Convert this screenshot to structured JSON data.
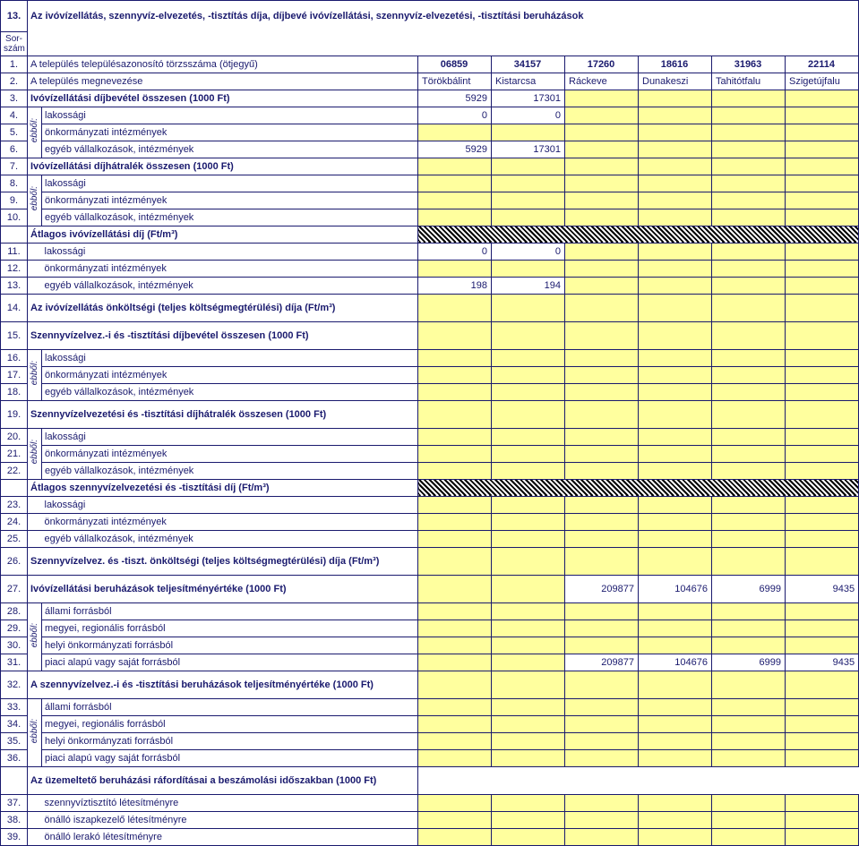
{
  "header": {
    "box13": "13.",
    "sorszam": "Sor-\nszám",
    "title": "Az ivóvízellátás, szennyvíz-elvezetés, -tisztítás díja, díjbevé\nivóvízellátási, szennyvíz-elvezetési, -tisztítási beruházások"
  },
  "ebbol_label": "ebből:",
  "cols": {
    "codes": [
      "06859",
      "34157",
      "17260",
      "18616",
      "31963",
      "22114"
    ],
    "names": [
      "Törökbálint",
      "Kistarcsa",
      "Ráckeve",
      "Dunakeszi",
      "Tahitótfalu",
      "Szigetújfalu"
    ]
  },
  "rows": [
    {
      "n": "1.",
      "label": "A település településazonosító törzsszáma (ötjegyű)",
      "bold": false,
      "data": [
        "06859",
        "34157",
        "17260",
        "18616",
        "31963",
        "22114"
      ],
      "align": "center",
      "bolddata": true
    },
    {
      "n": "2.",
      "label": "A település megnevezése",
      "data": [
        "Törökbálint",
        "Kistarcsa",
        "Ráckeve",
        "Dunakeszi",
        "Tahitótfalu",
        "Szigetújfalu"
      ],
      "align": "left"
    },
    {
      "n": "3.",
      "label": "Ivóvízellátási díjbevétel összesen (1000 Ft)",
      "bold": true,
      "data": [
        "5929",
        "17301",
        "",
        "",
        "",
        ""
      ],
      "align": "right",
      "yellow_from": 2
    },
    {
      "n": "4.",
      "sub": true,
      "grp": "g1",
      "label": "lakossági",
      "data": [
        "0",
        "0",
        "",
        "",
        "",
        ""
      ],
      "yellow_from": 2
    },
    {
      "n": "5.",
      "sub": true,
      "grp": "g1",
      "label": "önkormányzati intézmények",
      "data": [
        "",
        "",
        "",
        "",
        "",
        ""
      ],
      "yellow_all": true
    },
    {
      "n": "6.",
      "sub": true,
      "grp": "g1",
      "label": "egyéb vállalkozások, intézmények",
      "data": [
        "5929",
        "17301",
        "",
        "",
        "",
        ""
      ],
      "yellow_from": 2
    },
    {
      "n": "7.",
      "label": "Ivóvízellátási díjhátralék összesen (1000 Ft)",
      "bold": true,
      "data": [
        "",
        "",
        "",
        "",
        "",
        ""
      ],
      "yellow_all": true
    },
    {
      "n": "8.",
      "sub": true,
      "grp": "g2",
      "label": "lakossági",
      "data": [
        "",
        "",
        "",
        "",
        "",
        ""
      ],
      "yellow_all": true
    },
    {
      "n": "9.",
      "sub": true,
      "grp": "g2",
      "label": "önkormányzati intézmények",
      "data": [
        "",
        "",
        "",
        "",
        "",
        ""
      ],
      "yellow_all": true
    },
    {
      "n": "10.",
      "sub": true,
      "grp": "g2",
      "label": "egyéb vállalkozások, intézmények",
      "data": [
        "",
        "",
        "",
        "",
        "",
        ""
      ],
      "yellow_all": true
    },
    {
      "n": "",
      "label": "Átlagos ivóvízellátási díj (Ft/m³)",
      "bold": true,
      "hatch": true
    },
    {
      "n": "11.",
      "sub": true,
      "noebb": true,
      "label": "lakossági",
      "data": [
        "0",
        "0",
        "",
        "",
        "",
        ""
      ],
      "yellow_from": 2
    },
    {
      "n": "12.",
      "sub": true,
      "noebb": true,
      "label": "önkormányzati intézmények",
      "data": [
        "",
        "",
        "",
        "",
        "",
        ""
      ],
      "yellow_all": true
    },
    {
      "n": "13.",
      "sub": true,
      "noebb": true,
      "label": "egyéb vállalkozások, intézmények",
      "data": [
        "198",
        "194",
        "",
        "",
        "",
        ""
      ],
      "yellow_from": 2
    },
    {
      "n": "14.",
      "label": "Az ivóvízellátás önköltségi (teljes költségmegtérülési) díja (Ft/m³)",
      "bold": true,
      "tall": true,
      "data": [
        "",
        "",
        "",
        "",
        "",
        ""
      ],
      "yellow_all": true
    },
    {
      "n": "15.",
      "label": "Szennyvízelvez.-i és -tisztítási díjbevétel összesen (1000 Ft)",
      "bold": true,
      "tall": true,
      "data": [
        "",
        "",
        "",
        "",
        "",
        ""
      ],
      "yellow_all": true
    },
    {
      "n": "16.",
      "sub": true,
      "grp": "g3",
      "label": "lakossági",
      "data": [
        "",
        "",
        "",
        "",
        "",
        ""
      ],
      "yellow_all": true
    },
    {
      "n": "17.",
      "sub": true,
      "grp": "g3",
      "label": "önkormányzati intézmények",
      "data": [
        "",
        "",
        "",
        "",
        "",
        ""
      ],
      "yellow_all": true
    },
    {
      "n": "18.",
      "sub": true,
      "grp": "g3",
      "label": "egyéb vállalkozások, intézmények",
      "data": [
        "",
        "",
        "",
        "",
        "",
        ""
      ],
      "yellow_all": true
    },
    {
      "n": "19.",
      "label": "Szennyvízelvezetési és -tisztítási díjhátralék összesen (1000 Ft)",
      "bold": true,
      "tall": true,
      "data": [
        "",
        "",
        "",
        "",
        "",
        ""
      ],
      "yellow_all": true
    },
    {
      "n": "20.",
      "sub": true,
      "grp": "g4",
      "label": "lakossági",
      "data": [
        "",
        "",
        "",
        "",
        "",
        ""
      ],
      "yellow_all": true
    },
    {
      "n": "21.",
      "sub": true,
      "grp": "g4",
      "label": "önkormányzati intézmények",
      "data": [
        "",
        "",
        "",
        "",
        "",
        ""
      ],
      "yellow_all": true
    },
    {
      "n": "22.",
      "sub": true,
      "grp": "g4",
      "label": "egyéb vállalkozások, intézmények",
      "data": [
        "",
        "",
        "",
        "",
        "",
        ""
      ],
      "yellow_all": true
    },
    {
      "n": "",
      "label": "Átlagos szennyvízelvezetési és -tisztítási díj (Ft/m³)",
      "bold": true,
      "hatch": true
    },
    {
      "n": "23.",
      "sub": true,
      "noebb": true,
      "label": "lakossági",
      "data": [
        "",
        "",
        "",
        "",
        "",
        ""
      ],
      "yellow_all": true
    },
    {
      "n": "24.",
      "sub": true,
      "noebb": true,
      "label": "önkormányzati intézmények",
      "data": [
        "",
        "",
        "",
        "",
        "",
        ""
      ],
      "yellow_all": true
    },
    {
      "n": "25.",
      "sub": true,
      "noebb": true,
      "label": "egyéb vállalkozások, intézmények",
      "data": [
        "",
        "",
        "",
        "",
        "",
        ""
      ],
      "yellow_all": true
    },
    {
      "n": "26.",
      "label": "Szennyvízelvez. és -tiszt. önköltségi (teljes költségmegtérülési) díja (Ft/m³)",
      "bold": true,
      "tall": true,
      "data": [
        "",
        "",
        "",
        "",
        "",
        ""
      ],
      "yellow_all": true
    },
    {
      "n": "27.",
      "label": "Ivóvízellátási beruházások teljesítményértéke  (1000 Ft)",
      "bold": true,
      "tall": true,
      "data": [
        "",
        "",
        "209877",
        "104676",
        "6999",
        "9435"
      ],
      "yellow_idx": [
        0,
        1
      ]
    },
    {
      "n": "28.",
      "sub": true,
      "grp": "g5",
      "label": "állami forrásból",
      "data": [
        "",
        "",
        "",
        "",
        "",
        ""
      ],
      "yellow_all": true
    },
    {
      "n": "29.",
      "sub": true,
      "grp": "g5",
      "label": "megyei, regionális forrásból",
      "data": [
        "",
        "",
        "",
        "",
        "",
        ""
      ],
      "yellow_all": true
    },
    {
      "n": "30.",
      "sub": true,
      "grp": "g5",
      "label": "helyi önkormányzati forrásból",
      "data": [
        "",
        "",
        "",
        "",
        "",
        ""
      ],
      "yellow_all": true
    },
    {
      "n": "31.",
      "sub": true,
      "grp": "g5",
      "label": "piaci alapú vagy saját forrásból",
      "data": [
        "",
        "",
        "209877",
        "104676",
        "6999",
        "9435"
      ],
      "yellow_idx": [
        0,
        1
      ]
    },
    {
      "n": "32.",
      "label": "A szennyvízelvez.-i és -tisztítási beruházások teljesítményértéke (1000 Ft)",
      "bold": true,
      "tall": true,
      "data": [
        "",
        "",
        "",
        "",
        "",
        ""
      ],
      "yellow_all": true
    },
    {
      "n": "33.",
      "sub": true,
      "grp": "g6",
      "label": "állami forrásból",
      "data": [
        "",
        "",
        "",
        "",
        "",
        ""
      ],
      "yellow_all": true
    },
    {
      "n": "34.",
      "sub": true,
      "grp": "g6",
      "label": "megyei, regionális forrásból",
      "data": [
        "",
        "",
        "",
        "",
        "",
        ""
      ],
      "yellow_all": true
    },
    {
      "n": "35.",
      "sub": true,
      "grp": "g6",
      "label": "helyi önkormányzati forrásból",
      "data": [
        "",
        "",
        "",
        "",
        "",
        ""
      ],
      "yellow_all": true
    },
    {
      "n": "36.",
      "sub": true,
      "grp": "g6",
      "label": "piaci alapú vagy saját forrásból",
      "data": [
        "",
        "",
        "",
        "",
        "",
        ""
      ],
      "yellow_all": true
    },
    {
      "n": "",
      "label": "Az üzemeltető beruházási ráfordításai a beszámolási időszakban (1000 Ft)",
      "bold": true,
      "tall": true,
      "nodata": true
    },
    {
      "n": "37.",
      "sub": true,
      "noebb": true,
      "label": "szennyvíztisztító létesítményre",
      "data": [
        "",
        "",
        "",
        "",
        "",
        ""
      ],
      "yellow_all": true
    },
    {
      "n": "38.",
      "sub": true,
      "noebb": true,
      "label": "önálló iszapkezelő létesítményre",
      "data": [
        "",
        "",
        "",
        "",
        "",
        ""
      ],
      "yellow_all": true
    },
    {
      "n": "39.",
      "sub": true,
      "noebb": true,
      "label": "önálló lerakó létesítményre",
      "data": [
        "",
        "",
        "",
        "",
        "",
        ""
      ],
      "yellow_all": true
    }
  ]
}
